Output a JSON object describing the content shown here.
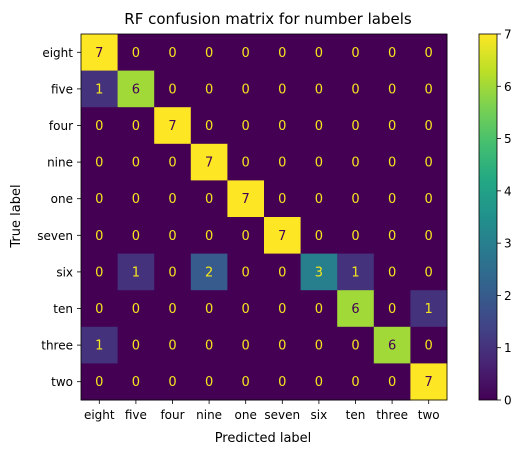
{
  "chart_data": {
    "type": "heatmap",
    "title": "RF confusion matrix for number labels",
    "xlabel": "Predicted label",
    "ylabel": "True label",
    "row_labels": [
      "eight",
      "five",
      "four",
      "nine",
      "one",
      "seven",
      "six",
      "ten",
      "three",
      "two"
    ],
    "col_labels": [
      "eight",
      "five",
      "four",
      "nine",
      "one",
      "seven",
      "six",
      "ten",
      "three",
      "two"
    ],
    "values": [
      [
        7,
        0,
        0,
        0,
        0,
        0,
        0,
        0,
        0,
        0
      ],
      [
        1,
        6,
        0,
        0,
        0,
        0,
        0,
        0,
        0,
        0
      ],
      [
        0,
        0,
        7,
        0,
        0,
        0,
        0,
        0,
        0,
        0
      ],
      [
        0,
        0,
        0,
        7,
        0,
        0,
        0,
        0,
        0,
        0
      ],
      [
        0,
        0,
        0,
        0,
        7,
        0,
        0,
        0,
        0,
        0
      ],
      [
        0,
        0,
        0,
        0,
        0,
        7,
        0,
        0,
        0,
        0
      ],
      [
        0,
        1,
        0,
        2,
        0,
        0,
        3,
        1,
        0,
        0
      ],
      [
        0,
        0,
        0,
        0,
        0,
        0,
        0,
        6,
        0,
        1
      ],
      [
        1,
        0,
        0,
        0,
        0,
        0,
        0,
        0,
        6,
        0
      ],
      [
        0,
        0,
        0,
        0,
        0,
        0,
        0,
        0,
        0,
        7
      ]
    ],
    "vmin": 0,
    "vmax": 7,
    "colormap": "viridis",
    "colorbar_ticks": [
      0,
      1,
      2,
      3,
      4,
      5,
      6,
      7
    ],
    "text_color_on_dark": "#f5e61e",
    "text_color_on_light": "#440154"
  }
}
